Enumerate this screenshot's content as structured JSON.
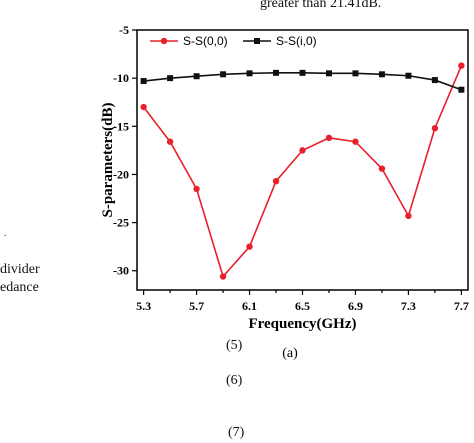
{
  "page_text": {
    "top": "greater than 21.41dB.",
    "left_fragments": [
      "divider",
      "edance",
      "."
    ],
    "equation_numbers": [
      "(5)",
      "(6)",
      "(7)"
    ]
  },
  "chart_data": {
    "type": "line",
    "title": "",
    "xlabel": "Frequency(GHz)",
    "ylabel": "S-parameters(dB)",
    "subfigure_label": "(a)",
    "xlim": [
      5.25,
      7.75
    ],
    "ylim": [
      -32,
      -5
    ],
    "x_ticks": [
      5.3,
      5.5,
      5.7,
      5.9,
      6.1,
      6.3,
      6.5,
      6.7,
      6.9,
      7.1,
      7.3,
      7.5,
      7.7
    ],
    "x_tick_labels": [
      "5.3",
      "5.7",
      "6.1",
      "6.5",
      "6.9",
      "7.3",
      "7.7"
    ],
    "x_tick_label_values": [
      5.3,
      5.7,
      6.1,
      6.5,
      6.9,
      7.3,
      7.7
    ],
    "y_ticks": [
      -30,
      -25,
      -20,
      -15,
      -10,
      -5
    ],
    "y_tick_labels": [
      "-30",
      "-25",
      "-20",
      "-15",
      "-10",
      "-5"
    ],
    "grid": false,
    "legend_position": "top",
    "series": [
      {
        "name": "S-S(0,0)",
        "color": "#e8202a",
        "marker": "circle",
        "x": [
          5.3,
          5.5,
          5.7,
          5.9,
          6.1,
          6.3,
          6.5,
          6.7,
          6.9,
          7.1,
          7.3,
          7.5,
          7.7
        ],
        "y": [
          -13.0,
          -16.6,
          -21.5,
          -30.6,
          -27.5,
          -20.7,
          -17.5,
          -16.2,
          -16.6,
          -19.4,
          -24.3,
          -15.2,
          -8.7
        ]
      },
      {
        "name": "S-S(i,0)",
        "color": "#111111",
        "marker": "square",
        "x": [
          5.3,
          5.5,
          5.7,
          5.9,
          6.1,
          6.3,
          6.5,
          6.7,
          6.9,
          7.1,
          7.3,
          7.5,
          7.7
        ],
        "y": [
          -10.3,
          -10.0,
          -9.8,
          -9.6,
          -9.5,
          -9.45,
          -9.45,
          -9.5,
          -9.5,
          -9.6,
          -9.75,
          -10.2,
          -11.2
        ]
      }
    ]
  }
}
